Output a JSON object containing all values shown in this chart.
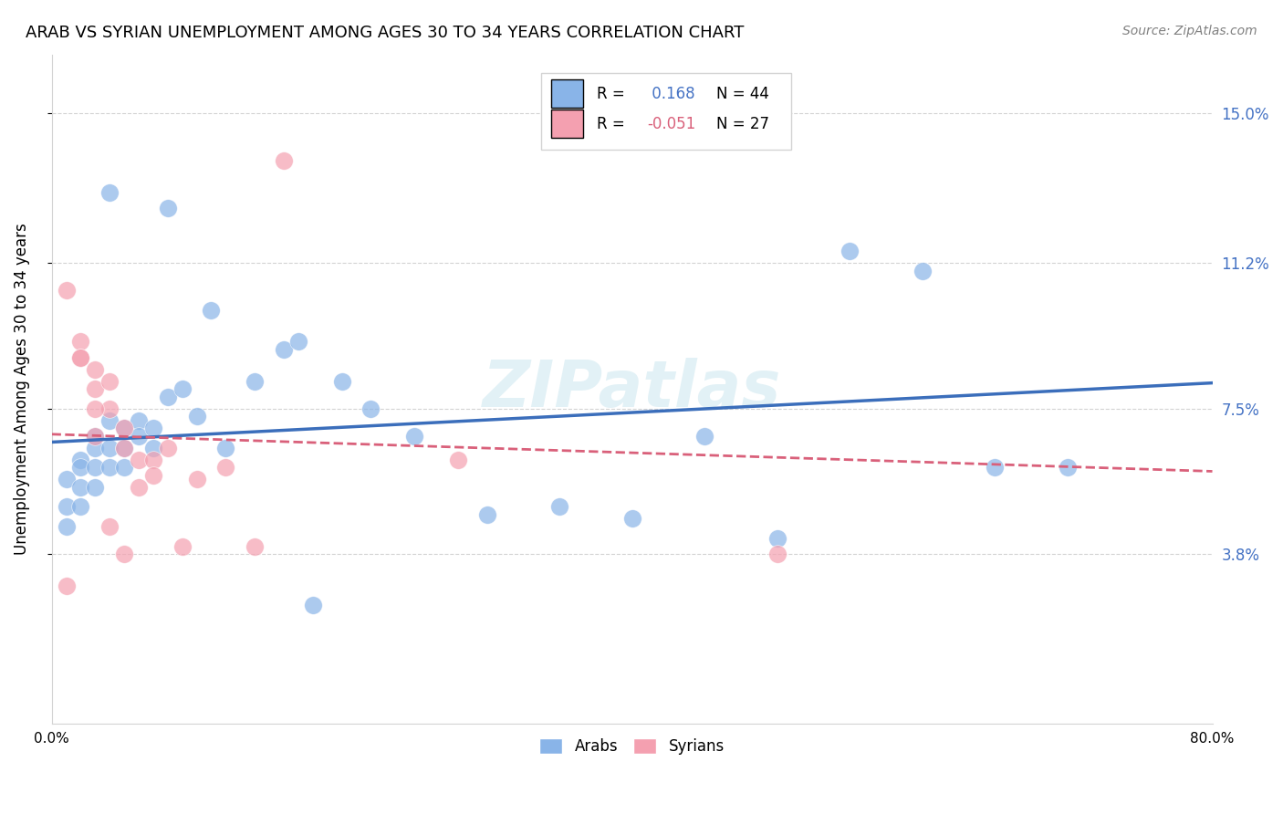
{
  "title": "ARAB VS SYRIAN UNEMPLOYMENT AMONG AGES 30 TO 34 YEARS CORRELATION CHART",
  "source": "Source: ZipAtlas.com",
  "ylabel": "Unemployment Among Ages 30 to 34 years",
  "xlim": [
    0.0,
    0.8
  ],
  "ylim": [
    -0.005,
    0.165
  ],
  "ytick_vals": [
    0.038,
    0.075,
    0.112,
    0.15
  ],
  "ytick_labels": [
    "3.8%",
    "7.5%",
    "11.2%",
    "15.0%"
  ],
  "arab_R": 0.168,
  "arab_N": 44,
  "syrian_R": -0.051,
  "syrian_N": 27,
  "arab_color": "#89B4E8",
  "syrian_color": "#F4A0B0",
  "arab_line_color": "#3B6EBB",
  "syrian_line_color": "#D9607A",
  "arab_R_color": "#4472C4",
  "syrian_R_color": "#D9607A",
  "watermark": "ZIPatlas",
  "arab_x": [
    0.01,
    0.01,
    0.01,
    0.02,
    0.02,
    0.02,
    0.02,
    0.03,
    0.03,
    0.03,
    0.03,
    0.04,
    0.04,
    0.04,
    0.05,
    0.05,
    0.05,
    0.06,
    0.06,
    0.07,
    0.07,
    0.08,
    0.09,
    0.1,
    0.11,
    0.12,
    0.14,
    0.16,
    0.2,
    0.22,
    0.25,
    0.3,
    0.35,
    0.4,
    0.45,
    0.5,
    0.55,
    0.6,
    0.65,
    0.7,
    0.04,
    0.08,
    0.17,
    0.18
  ],
  "arab_y": [
    0.057,
    0.05,
    0.045,
    0.062,
    0.06,
    0.055,
    0.05,
    0.068,
    0.065,
    0.06,
    0.055,
    0.072,
    0.065,
    0.06,
    0.07,
    0.065,
    0.06,
    0.072,
    0.068,
    0.07,
    0.065,
    0.078,
    0.08,
    0.073,
    0.1,
    0.065,
    0.082,
    0.09,
    0.082,
    0.075,
    0.068,
    0.048,
    0.05,
    0.047,
    0.068,
    0.042,
    0.115,
    0.11,
    0.06,
    0.06,
    0.13,
    0.126,
    0.092,
    0.025
  ],
  "syrian_x": [
    0.01,
    0.02,
    0.02,
    0.03,
    0.03,
    0.04,
    0.04,
    0.05,
    0.05,
    0.06,
    0.06,
    0.07,
    0.07,
    0.08,
    0.09,
    0.1,
    0.12,
    0.14,
    0.01,
    0.02,
    0.03,
    0.03,
    0.04,
    0.05,
    0.16,
    0.28,
    0.5
  ],
  "syrian_y": [
    0.105,
    0.092,
    0.088,
    0.085,
    0.08,
    0.082,
    0.075,
    0.07,
    0.065,
    0.062,
    0.055,
    0.062,
    0.058,
    0.065,
    0.04,
    0.057,
    0.06,
    0.04,
    0.03,
    0.088,
    0.075,
    0.068,
    0.045,
    0.038,
    0.138,
    0.062,
    0.038
  ]
}
